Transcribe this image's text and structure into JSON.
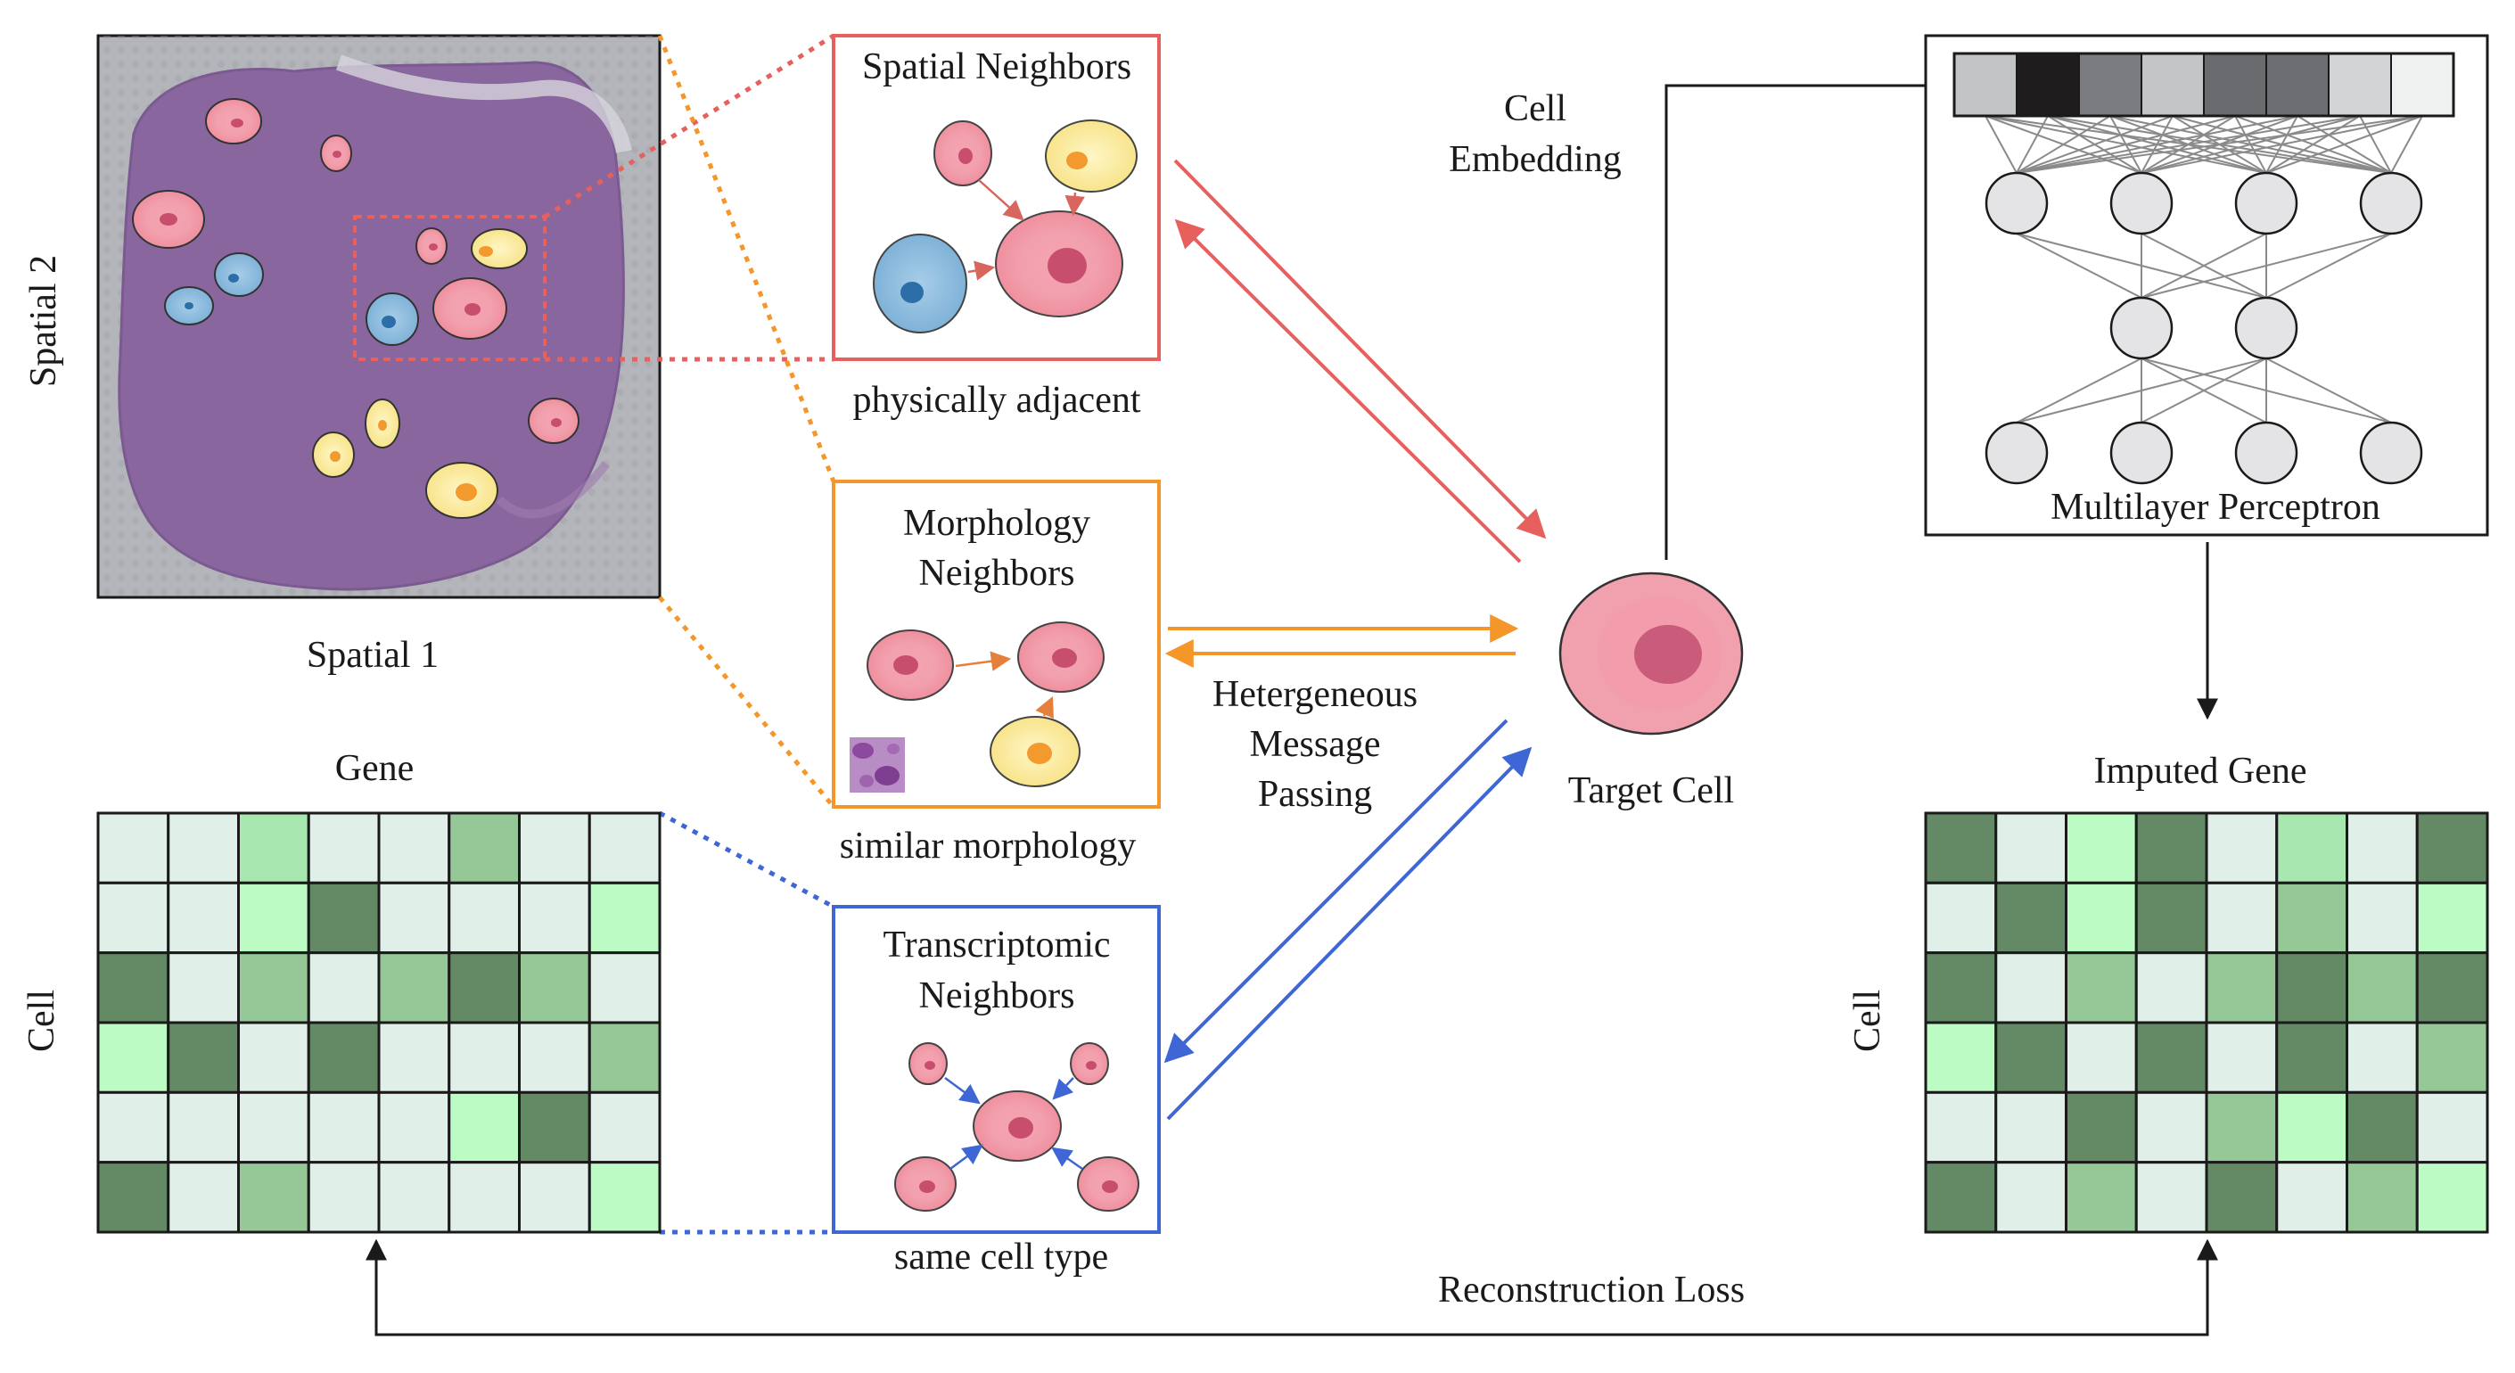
{
  "tissue": {
    "axis_x": "Spatial 1",
    "axis_y": "Spatial 2"
  },
  "gene_matrix": {
    "title": "Gene",
    "row_label": "Cell",
    "levels": [
      [
        0,
        0,
        2,
        0,
        0,
        3,
        0,
        0
      ],
      [
        0,
        0,
        1,
        4,
        0,
        0,
        0,
        1
      ],
      [
        4,
        0,
        3,
        0,
        3,
        4,
        3,
        0
      ],
      [
        1,
        4,
        0,
        4,
        0,
        0,
        0,
        3
      ],
      [
        0,
        0,
        0,
        0,
        0,
        1,
        4,
        0
      ],
      [
        4,
        0,
        3,
        0,
        0,
        0,
        0,
        1
      ]
    ]
  },
  "imputed_matrix": {
    "title": "Imputed Gene",
    "row_label": "Cell",
    "levels": [
      [
        4,
        0,
        1,
        4,
        0,
        2,
        0,
        4
      ],
      [
        0,
        4,
        1,
        4,
        0,
        3,
        0,
        1
      ],
      [
        4,
        0,
        3,
        0,
        3,
        4,
        3,
        4
      ],
      [
        1,
        4,
        0,
        4,
        0,
        4,
        0,
        3
      ],
      [
        0,
        0,
        4,
        0,
        3,
        1,
        4,
        0
      ],
      [
        4,
        0,
        3,
        0,
        4,
        0,
        3,
        1
      ]
    ],
    "palette": [
      "#e0efe7",
      "#bcfbc4",
      "#a9e7b0",
      "#95c896",
      "#648965"
    ]
  },
  "neighbors": {
    "spatial": {
      "title": "Spatial Neighbors",
      "caption": "physically adjacent",
      "color": "#e8605e"
    },
    "morphology": {
      "title_line1": "Morphology",
      "title_line2": "Neighbors",
      "caption": "similar morphology",
      "color": "#f5962a"
    },
    "transcriptomic": {
      "title_line1": "Transcriptomic",
      "title_line2": "Neighbors",
      "caption": "same cell type",
      "color": "#3e66d4"
    }
  },
  "message_passing": {
    "line1": "Hetergeneous",
    "line2": "Message",
    "line3": "Passing"
  },
  "target_cell": {
    "label": "Target Cell"
  },
  "embedding": {
    "line1": "Cell",
    "line2": "Embedding",
    "shades": [
      "#c3c4c6",
      "#1f1c1d",
      "#7b7c7f",
      "#c4c5c7",
      "#6a6b6e",
      "#6c6e71",
      "#d3d4d6",
      "#eef1f0"
    ]
  },
  "mlp": {
    "label": "Multilayer Perceptron",
    "layers": [
      4,
      2,
      4
    ]
  },
  "loss": {
    "label": "Reconstruction Loss"
  }
}
